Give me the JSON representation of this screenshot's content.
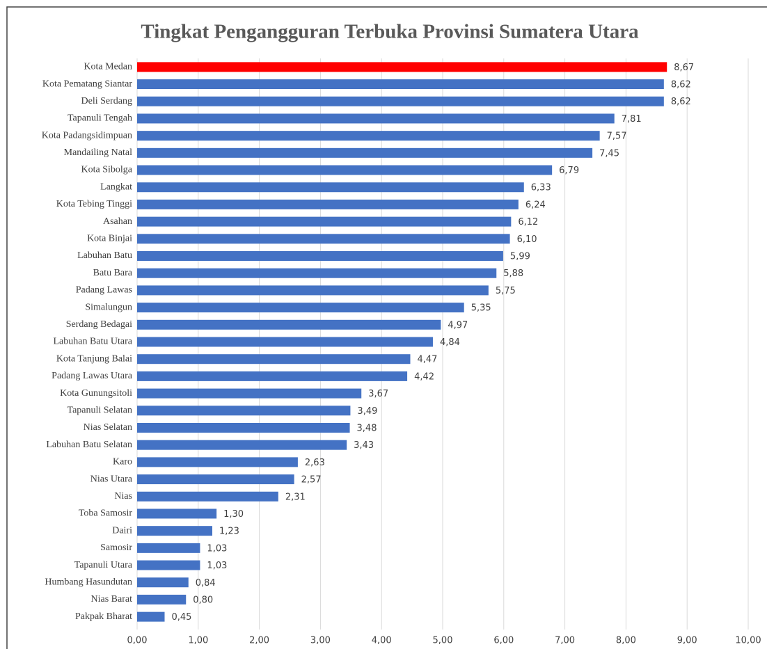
{
  "chart_data": {
    "type": "barh",
    "title": "Tingkat Pengangguran Terbuka Provinsi Sumatera Utara",
    "categories": [
      "Kota Medan",
      "Kota Pematang Siantar",
      "Deli Serdang",
      "Tapanuli Tengah",
      "Kota Padangsidimpuan",
      "Mandailing Natal",
      "Kota Sibolga",
      "Langkat",
      "Kota Tebing Tinggi",
      "Asahan",
      "Kota Binjai",
      "Labuhan Batu",
      "Batu Bara",
      "Padang Lawas",
      "Simalungun",
      "Serdang Bedagai",
      "Labuhan Batu Utara",
      "Kota Tanjung Balai",
      "Padang Lawas Utara",
      "Kota Gunungsitoli",
      "Tapanuli Selatan",
      "Nias Selatan",
      "Labuhan Batu Selatan",
      "Karo",
      "Nias Utara",
      "Nias",
      "Toba Samosir",
      "Dairi",
      "Samosir",
      "Tapanuli Utara",
      "Humbang Hasundutan",
      "Nias Barat",
      "Pakpak Bharat"
    ],
    "values": [
      8.67,
      8.62,
      8.62,
      7.81,
      7.57,
      7.45,
      6.79,
      6.33,
      6.24,
      6.12,
      6.1,
      5.99,
      5.88,
      5.75,
      5.35,
      4.97,
      4.84,
      4.47,
      4.42,
      3.67,
      3.49,
      3.48,
      3.43,
      2.63,
      2.57,
      2.31,
      1.3,
      1.23,
      1.03,
      1.03,
      0.84,
      0.8,
      0.45
    ],
    "value_labels": [
      "8,67",
      "8,62",
      "8,62",
      "7,81",
      "7,57",
      "7,45",
      "6,79",
      "6,33",
      "6,24",
      "6,12",
      "6,10",
      "5,99",
      "5,88",
      "5,75",
      "5,35",
      "4,97",
      "4,84",
      "4,47",
      "4,42",
      "3,67",
      "3,49",
      "3,48",
      "3,43",
      "2,63",
      "2,57",
      "2,31",
      "1,30",
      "1,23",
      "1,03",
      "1,03",
      "0,84",
      "0,80",
      "0,45"
    ],
    "colors": [
      "#ff0000",
      "#4472c4",
      "#4472c4",
      "#4472c4",
      "#4472c4",
      "#4472c4",
      "#4472c4",
      "#4472c4",
      "#4472c4",
      "#4472c4",
      "#4472c4",
      "#4472c4",
      "#4472c4",
      "#4472c4",
      "#4472c4",
      "#4472c4",
      "#4472c4",
      "#4472c4",
      "#4472c4",
      "#4472c4",
      "#4472c4",
      "#4472c4",
      "#4472c4",
      "#4472c4",
      "#4472c4",
      "#4472c4",
      "#4472c4",
      "#4472c4",
      "#4472c4",
      "#4472c4",
      "#4472c4",
      "#4472c4",
      "#4472c4"
    ],
    "xlim": [
      0,
      10
    ],
    "xticks": [
      {
        "value": 0,
        "label": "0,00"
      },
      {
        "value": 1,
        "label": "1,00"
      },
      {
        "value": 2,
        "label": "2,00"
      },
      {
        "value": 3,
        "label": "3,00"
      },
      {
        "value": 4,
        "label": "4,00"
      },
      {
        "value": 5,
        "label": "5,00"
      },
      {
        "value": 6,
        "label": "6,00"
      },
      {
        "value": 7,
        "label": "7,00"
      },
      {
        "value": 8,
        "label": "8,00"
      },
      {
        "value": 9,
        "label": "9,00"
      },
      {
        "value": 10,
        "label": "10,00"
      }
    ],
    "grid": true
  }
}
